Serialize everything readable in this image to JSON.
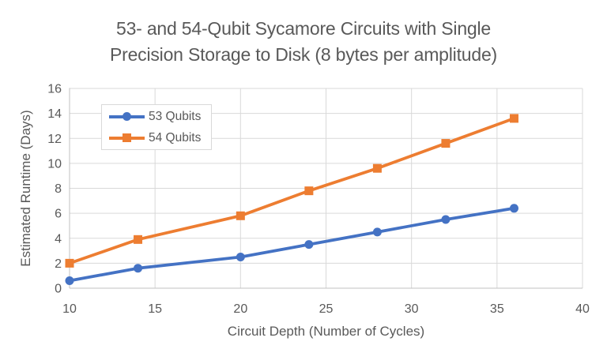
{
  "title": {
    "line1": "53- and 54-Qubit Sycamore Circuits with Single",
    "line2": "Precision Storage to Disk (8 bytes per amplitude)"
  },
  "chart_data": {
    "type": "line",
    "title": "53- and 54-Qubit Sycamore Circuits with Single Precision Storage to Disk (8 bytes per amplitude)",
    "xlabel": "Circuit Depth (Number of Cycles)",
    "ylabel": "Estimated Runtime (Days)",
    "x": [
      10,
      14,
      20,
      24,
      28,
      32,
      36
    ],
    "series": [
      {
        "name": "53 Qubits",
        "color": "#4472C4",
        "marker": "circle",
        "values": [
          0.6,
          1.6,
          2.5,
          3.5,
          4.5,
          5.5,
          6.4
        ]
      },
      {
        "name": "54 Qubits",
        "color": "#ED7D31",
        "marker": "square",
        "values": [
          2.0,
          3.9,
          5.8,
          7.8,
          9.6,
          11.6,
          13.6
        ]
      }
    ],
    "xlim": [
      10,
      40
    ],
    "ylim": [
      0,
      16
    ],
    "xticks": [
      10,
      15,
      20,
      25,
      30,
      35,
      40
    ],
    "yticks": [
      0,
      2,
      4,
      6,
      8,
      10,
      12,
      14,
      16
    ],
    "grid": true,
    "legend_position": "top-left-inside",
    "grid_color": "#D9D9D9",
    "axis_color": "#C0C0C0",
    "text_color": "#595959"
  }
}
